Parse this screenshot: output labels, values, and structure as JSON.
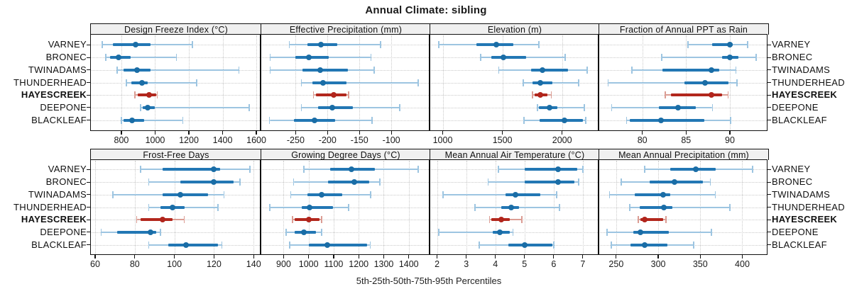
{
  "title": "Annual Climate: sibling",
  "caption": "5th-25th-50th-75th-95th Percentiles",
  "colors": {
    "normal_dot": "#1a6da6",
    "normal_bar": "#2277b4",
    "normal_range": "#9dc5e1",
    "highlight_dot": "#b1251c",
    "highlight_bar": "#b2271d",
    "highlight_range": "#db9d94",
    "strip_bg": "#f0f0f0",
    "panel_border": "#111111",
    "gridline": "#c9c9c9"
  },
  "chart_data": {
    "type": "dotplot-percentile-trellis",
    "percentiles": [
      5,
      25,
      50,
      75,
      95
    ],
    "legend_note": "each row shows 5th-95th whisker, 25th-75th thick bar, 50th dot",
    "grid": "dotted",
    "highlight_site": "HAYESCREEK",
    "sites": [
      "VARNEY",
      "BRONEC",
      "TWINADAMS",
      "THUNDERHEAD",
      "HAYESCREEK",
      "DEEPONE",
      "BLACKLEAF"
    ],
    "panels": [
      {
        "title": "Design Freeze Index (°C)",
        "axis": {
          "min": 615,
          "max": 1625,
          "ticks": [
            800,
            1000,
            1200,
            1400,
            1600
          ]
        },
        "values": [
          [
            685,
            748,
            884,
            973,
            1220
          ],
          [
            706,
            731,
            783,
            853,
            1126
          ],
          [
            776,
            811,
            892,
            972,
            1497
          ],
          [
            828,
            860,
            923,
            958,
            1245
          ],
          [
            881,
            895,
            964,
            1006,
            1013
          ],
          [
            913,
            926,
            955,
            1000,
            1558
          ],
          [
            800,
            812,
            864,
            934,
            1164
          ]
        ]
      },
      {
        "title": "Effective Precipitation (mm)",
        "axis": {
          "min": -305,
          "max": -40,
          "ticks": [
            -250,
            -200,
            -150,
            -100
          ]
        },
        "values": [
          [
            -260,
            -231,
            -210,
            -185,
            -117
          ],
          [
            -290,
            -250,
            -229,
            -198,
            -132
          ],
          [
            -290,
            -239,
            -212,
            -168,
            -127
          ],
          [
            -241,
            -224,
            -207,
            -170,
            -58
          ],
          [
            -222,
            -218,
            -190,
            -170,
            -167
          ],
          [
            -241,
            -215,
            -192,
            -160,
            -87
          ],
          [
            -291,
            -253,
            -220,
            -188,
            -130
          ]
        ]
      },
      {
        "title": "Elevation (m)",
        "axis": {
          "min": 890,
          "max": 2305,
          "ticks": [
            1000,
            1500,
            2000
          ]
        },
        "values": [
          [
            968,
            1285,
            1448,
            1592,
            1806
          ],
          [
            1319,
            1410,
            1509,
            1701,
            2027
          ],
          [
            1469,
            1740,
            1837,
            2048,
            2210
          ],
          [
            1675,
            1751,
            1820,
            1919,
            2140
          ],
          [
            1751,
            1770,
            1820,
            1879,
            1909
          ],
          [
            1794,
            1806,
            1897,
            1958,
            2186
          ],
          [
            1681,
            1810,
            2018,
            2176,
            2196
          ]
        ]
      },
      {
        "title": "Fraction of Annual PPT as Rain",
        "axis": {
          "min": 75,
          "max": 94.3,
          "ticks": [
            80,
            85,
            90
          ]
        },
        "values": [
          [
            85.2,
            88,
            90,
            90.3,
            92
          ],
          [
            82.2,
            89.1,
            90,
            91,
            93
          ],
          [
            78.8,
            82.3,
            87.9,
            88.8,
            90.7
          ],
          [
            76.1,
            84.8,
            87.2,
            89.8,
            90.8
          ],
          [
            82.6,
            83.3,
            87.9,
            89.1,
            89.8
          ],
          [
            76.5,
            81.9,
            84.1,
            86.1,
            88
          ],
          [
            78.2,
            78.6,
            82.1,
            87.1,
            90.1
          ]
        ]
      },
      {
        "title": "Frost-Free Days",
        "axis": {
          "min": 57.5,
          "max": 143.5,
          "ticks": [
            60,
            80,
            100,
            120,
            140
          ]
        },
        "values": [
          [
            83,
            94,
            120,
            123,
            138
          ],
          [
            87,
            103,
            120,
            130,
            133
          ],
          [
            69,
            94,
            103,
            117,
            125
          ],
          [
            87,
            93,
            99,
            105,
            122
          ],
          [
            81,
            83,
            94,
            99,
            105
          ],
          [
            63,
            71,
            88,
            91,
            93
          ],
          [
            87,
            97,
            106,
            122,
            124
          ]
        ]
      },
      {
        "title": "Growing Degree Days (°C)",
        "axis": {
          "min": 808,
          "max": 1483,
          "ticks": [
            900,
            1000,
            1100,
            1200,
            1300,
            1400
          ]
        },
        "values": [
          [
            980,
            1086,
            1172,
            1266,
            1438
          ],
          [
            940,
            1077,
            1181,
            1242,
            1285
          ],
          [
            928,
            996,
            1052,
            1134,
            1247
          ],
          [
            845,
            973,
            1004,
            1096,
            1160
          ],
          [
            935,
            945,
            1000,
            1044,
            1052
          ],
          [
            910,
            945,
            982,
            1030,
            1051
          ],
          [
            924,
            1001,
            1074,
            1233,
            1246
          ]
        ]
      },
      {
        "title": "Mean Annual Air Temperature (°C)",
        "axis": {
          "min": 1.74,
          "max": 7.54,
          "ticks": [
            2,
            3,
            4,
            5,
            6,
            7
          ]
        },
        "values": [
          [
            4.1,
            5.0,
            6.15,
            6.8,
            7.0
          ],
          [
            3.75,
            5.0,
            6.15,
            6.7,
            6.85
          ],
          [
            2.2,
            4.35,
            4.7,
            5.55,
            6.1
          ],
          [
            3.3,
            4.2,
            4.55,
            4.8,
            6.2
          ],
          [
            3.8,
            3.85,
            4.2,
            4.5,
            4.9
          ],
          [
            2.05,
            3.9,
            4.15,
            4.5,
            4.6
          ],
          [
            3.45,
            4.45,
            5.0,
            5.95,
            6.0
          ]
        ]
      },
      {
        "title": "Mean Annual Precipitation (mm)",
        "axis": {
          "min": 229,
          "max": 430,
          "ticks": [
            250,
            300,
            350,
            400
          ]
        },
        "values": [
          [
            284,
            314,
            345,
            368,
            412
          ],
          [
            256,
            290,
            319,
            353,
            362
          ],
          [
            242,
            272,
            306,
            314,
            368
          ],
          [
            266,
            278,
            307,
            317,
            385
          ],
          [
            276,
            279,
            284,
            306,
            309
          ],
          [
            239,
            270,
            279,
            313,
            363
          ],
          [
            244,
            267,
            284,
            311,
            342
          ]
        ]
      }
    ]
  }
}
